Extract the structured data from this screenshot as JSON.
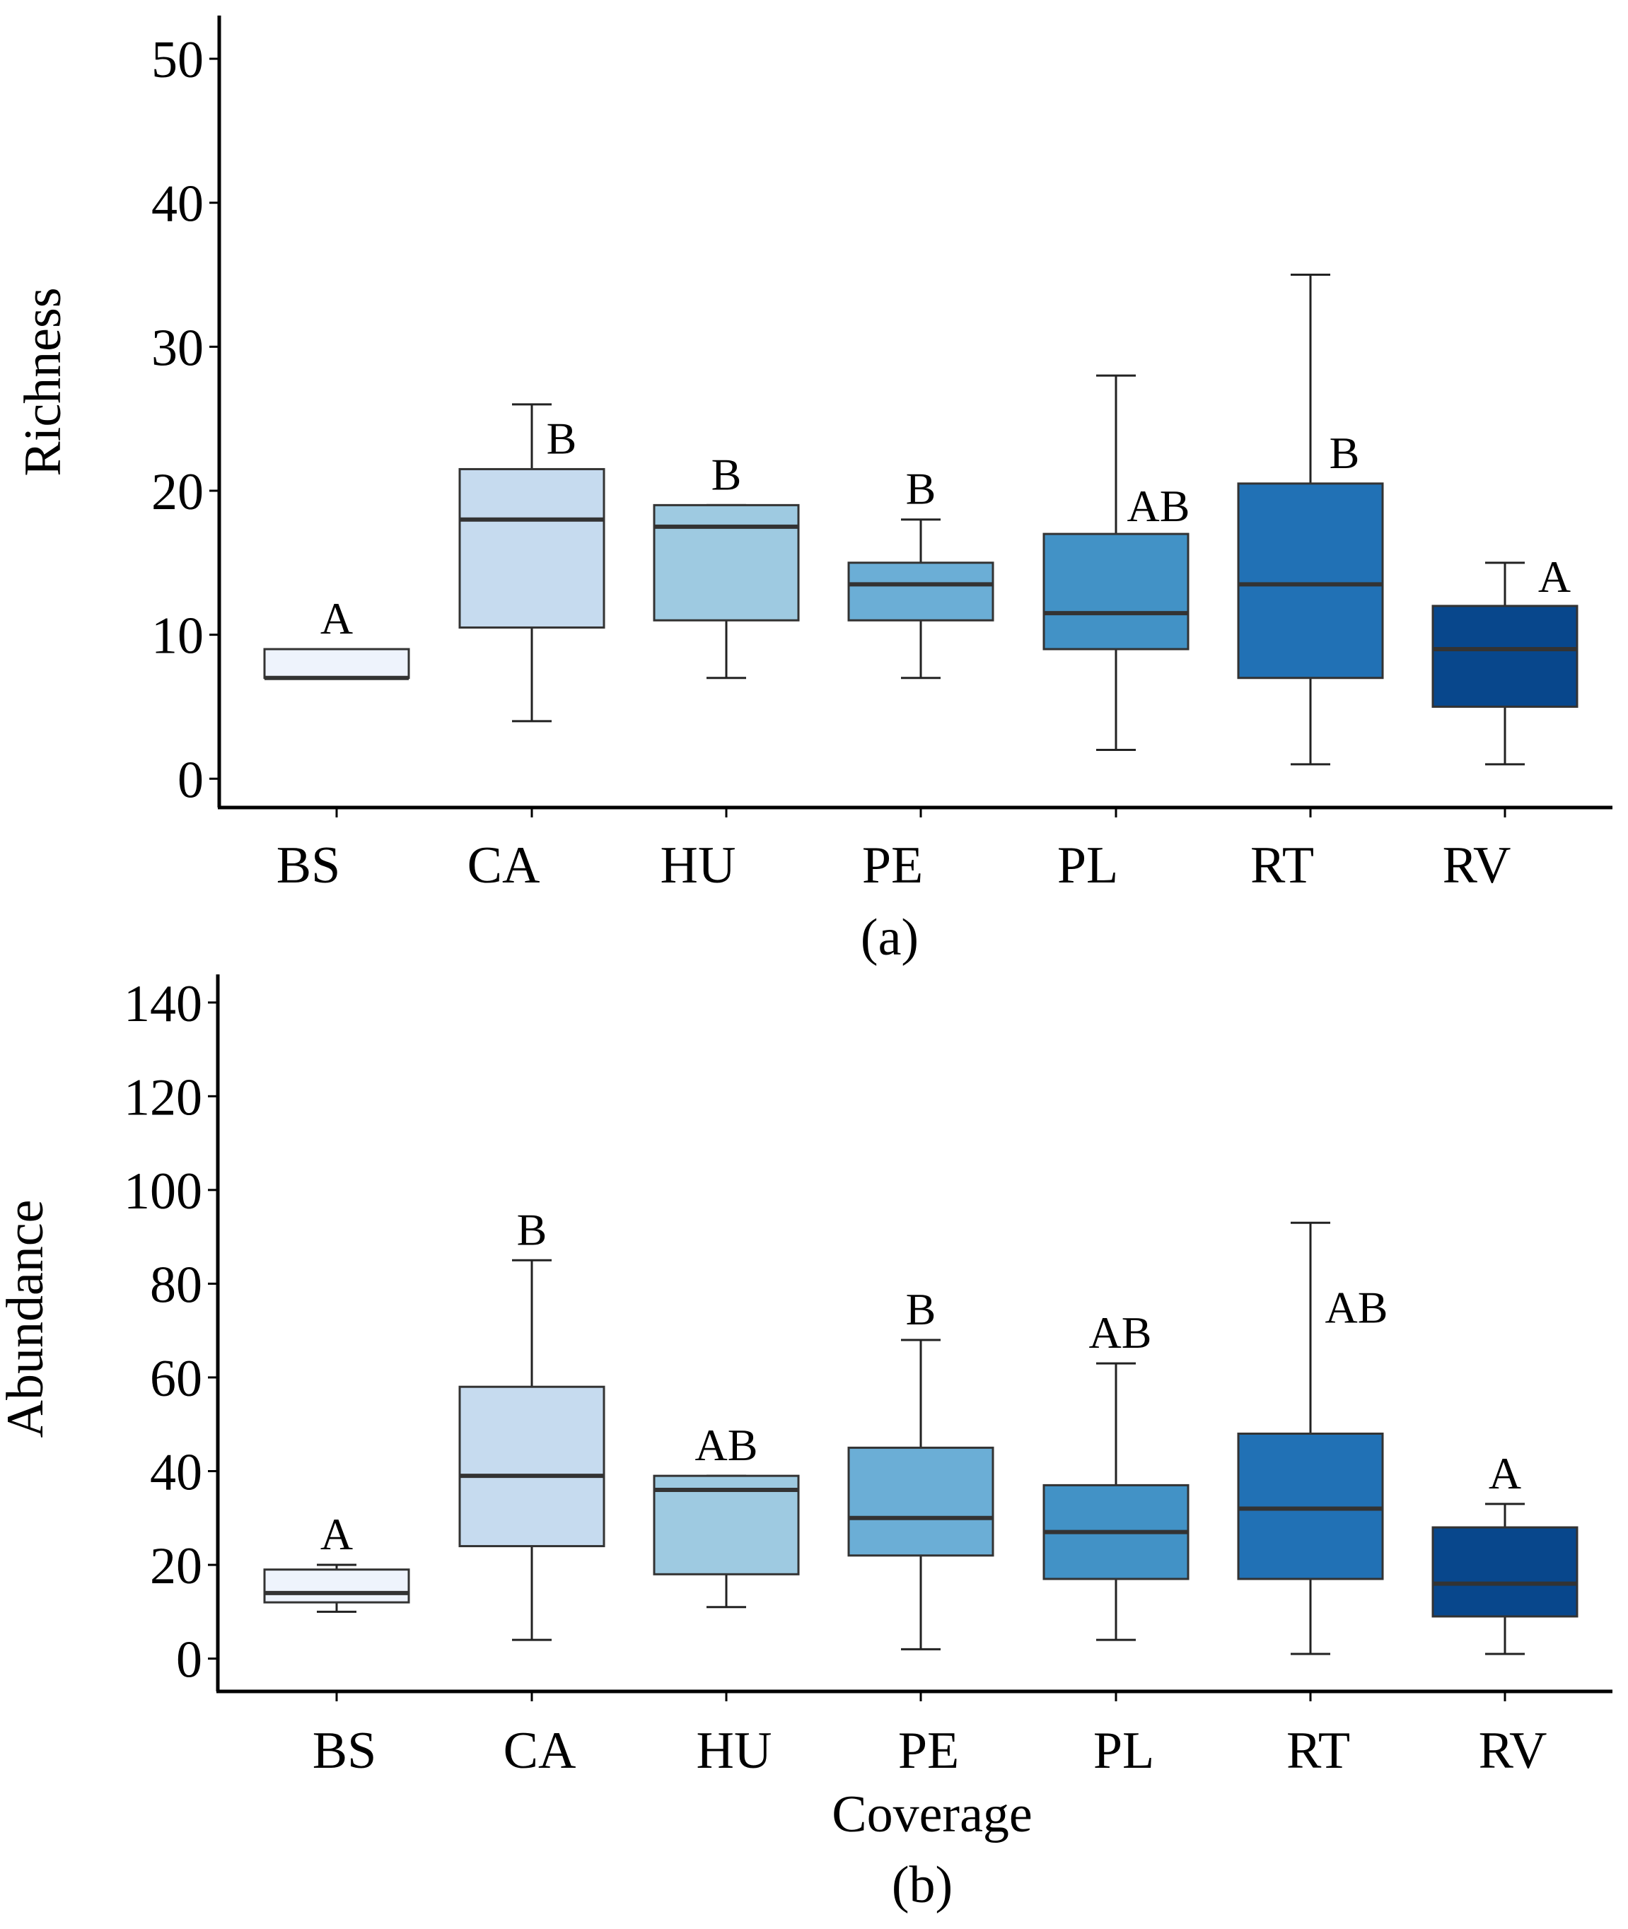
{
  "chart_data": [
    {
      "type": "box",
      "panel_label": "(a)",
      "xlabel": "",
      "ylabel": "Richness",
      "ylim": [
        -2,
        53
      ],
      "yticks": [
        0,
        10,
        20,
        30,
        40,
        50
      ],
      "categories": [
        "BS",
        "CA",
        "HU",
        "PE",
        "PL",
        "RT",
        "RV"
      ],
      "boxes": [
        {
          "category": "BS",
          "min": 7,
          "q1": 7,
          "median": 7,
          "q3": 9,
          "max": 9,
          "letter": "A",
          "color": "#eef3fc"
        },
        {
          "category": "CA",
          "min": 4,
          "q1": 10.5,
          "median": 18,
          "q3": 21.5,
          "max": 26,
          "letter": "B",
          "color": "#c6dbef"
        },
        {
          "category": "HU",
          "min": 7,
          "q1": 11,
          "median": 17.5,
          "q3": 19,
          "max": 19,
          "letter": "B",
          "color": "#9ecae1"
        },
        {
          "category": "PE",
          "min": 7,
          "q1": 11,
          "median": 13.5,
          "q3": 15,
          "max": 18,
          "letter": "B",
          "color": "#6baed6"
        },
        {
          "category": "PL",
          "min": 2,
          "q1": 9,
          "median": 11.5,
          "q3": 17,
          "max": 28,
          "letter": "AB",
          "color": "#4292c6"
        },
        {
          "category": "RT",
          "min": 1,
          "q1": 7,
          "median": 13.5,
          "q3": 20.5,
          "max": 35,
          "letter": "B",
          "color": "#2171b5"
        },
        {
          "category": "RV",
          "min": 1,
          "q1": 5,
          "median": 9,
          "q3": 12,
          "max": 15,
          "letter": "A",
          "color": "#08478c"
        }
      ]
    },
    {
      "type": "box",
      "panel_label": "(b)",
      "xlabel": "Coverage",
      "ylabel": "Abundance",
      "ylim": [
        -7,
        146
      ],
      "yticks": [
        0,
        20,
        40,
        60,
        80,
        100,
        120,
        140
      ],
      "categories": [
        "BS",
        "CA",
        "HU",
        "PE",
        "PL",
        "RT",
        "RV"
      ],
      "boxes": [
        {
          "category": "BS",
          "min": 10,
          "q1": 12,
          "median": 14,
          "q3": 19,
          "max": 20,
          "letter": "A",
          "color": "#eef3fc"
        },
        {
          "category": "CA",
          "min": 4,
          "q1": 24,
          "median": 39,
          "q3": 58,
          "max": 85,
          "letter": "B",
          "color": "#c6dbef"
        },
        {
          "category": "HU",
          "min": 11,
          "q1": 18,
          "median": 36,
          "q3": 39,
          "max": 39,
          "letter": "AB",
          "color": "#9ecae1"
        },
        {
          "category": "PE",
          "min": 2,
          "q1": 22,
          "median": 30,
          "q3": 45,
          "max": 68,
          "letter": "B",
          "color": "#6baed6"
        },
        {
          "category": "PL",
          "min": 4,
          "q1": 17,
          "median": 27,
          "q3": 37,
          "max": 63,
          "letter": "AB",
          "color": "#4292c6"
        },
        {
          "category": "RT",
          "min": 1,
          "q1": 17,
          "median": 32,
          "q3": 48,
          "max": 93,
          "letter": "AB",
          "color": "#2171b5"
        },
        {
          "category": "RV",
          "min": 1,
          "q1": 9,
          "median": 16,
          "q3": 28,
          "max": 33,
          "letter": "A",
          "color": "#08478c"
        }
      ]
    }
  ]
}
